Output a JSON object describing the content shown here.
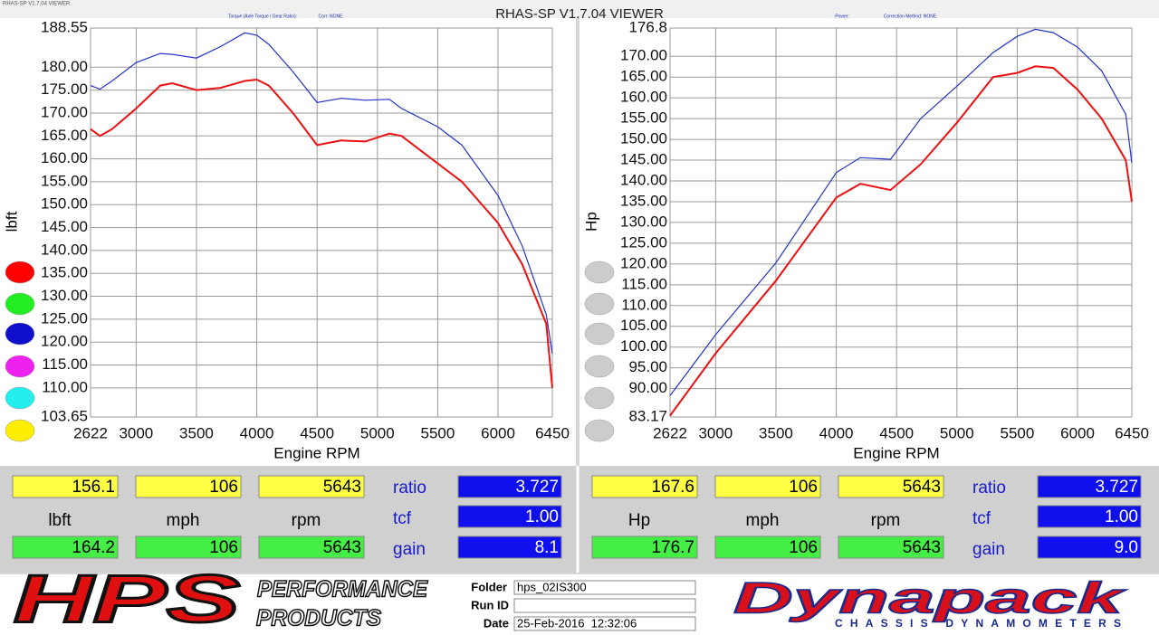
{
  "window_title": "RHAS-SP V1.7.04 VIEWER",
  "chart_data": [
    {
      "type": "line",
      "subtitle": "Torque (Axle Torque / Gear Ratio):",
      "correction": "Corr: NONE",
      "x_label": "Engine RPM",
      "y_label": "lbft",
      "x": [
        2622,
        2700,
        2800,
        3000,
        3200,
        3300,
        3500,
        3700,
        3900,
        4000,
        4100,
        4300,
        4500,
        4700,
        4900,
        5100,
        5200,
        5500,
        5700,
        6000,
        6200,
        6400,
        6450
      ],
      "series": [
        {
          "color": "#ee1111",
          "values": [
            166.5,
            165,
            166.5,
            171,
            176,
            176.5,
            175,
            175.5,
            177,
            177.3,
            176,
            170,
            163,
            164,
            163.8,
            165.5,
            165,
            159,
            155,
            146,
            137,
            124,
            110
          ]
        },
        {
          "color": "#2233cc",
          "values": [
            176,
            175.2,
            177,
            181,
            183,
            182.8,
            182,
            184.5,
            187.5,
            187,
            185,
            179,
            172.3,
            173.2,
            172.8,
            173,
            171,
            167,
            163,
            152,
            141,
            126,
            117.5
          ]
        }
      ],
      "xlim": [
        2622,
        6450
      ],
      "xticks": [
        2622,
        3000,
        3500,
        4000,
        4500,
        5000,
        5500,
        6000,
        6450
      ],
      "ylim": [
        103.65,
        188.55
      ],
      "yticks": [
        103.65,
        {
          "value": 110,
          "label": "110.00"
        },
        {
          "value": 115,
          "label": "115.00"
        },
        {
          "value": 120,
          "label": "120.00"
        },
        {
          "value": 125,
          "label": "125.00"
        },
        {
          "value": 130,
          "label": "130.00"
        },
        {
          "value": 135,
          "label": "135.00"
        },
        {
          "value": 140,
          "label": "140.00"
        },
        {
          "value": 145,
          "label": "145.00"
        },
        {
          "value": 150,
          "label": "150.00"
        },
        {
          "value": 155,
          "label": "155.00"
        },
        {
          "value": 160,
          "label": "160.00"
        },
        {
          "value": 165,
          "label": "165.00"
        },
        {
          "value": 170,
          "label": "170.00"
        },
        {
          "value": 175,
          "label": "175.00"
        },
        {
          "value": 180,
          "label": "180.00"
        },
        188.55
      ],
      "grid": true
    },
    {
      "type": "line",
      "subtitle": "Power:",
      "correction": "Correction Method: NONE",
      "x_label": "Engine RPM",
      "y_label": "Hp",
      "x": [
        2622,
        3000,
        3500,
        4000,
        4200,
        4450,
        4700,
        5000,
        5300,
        5500,
        5650,
        5800,
        6000,
        6200,
        6400,
        6450
      ],
      "series": [
        {
          "color": "#ee1111",
          "values": [
            83.5,
            98.5,
            116,
            136,
            139.3,
            137.8,
            144,
            154,
            165,
            166,
            167.6,
            167.2,
            162,
            155,
            145,
            135
          ]
        },
        {
          "color": "#2233cc",
          "values": [
            88.3,
            103,
            120.3,
            142,
            145.6,
            145.2,
            155,
            162.8,
            170.9,
            174.8,
            176.5,
            175.7,
            172.2,
            166.5,
            156,
            144.3
          ]
        }
      ],
      "xlim": [
        2622,
        6450
      ],
      "xticks": [
        2622,
        3000,
        3500,
        4000,
        4500,
        5000,
        5500,
        6000,
        6450
      ],
      "ylim": [
        83.17,
        176.8
      ],
      "yticks": [
        83.17,
        {
          "value": 90,
          "label": "90.00"
        },
        {
          "value": 95,
          "label": "95.00"
        },
        {
          "value": 100,
          "label": "100.00"
        },
        {
          "value": 105,
          "label": "105.00"
        },
        {
          "value": 110,
          "label": "110.00"
        },
        {
          "value": 115,
          "label": "115.00"
        },
        {
          "value": 120,
          "label": "120.00"
        },
        {
          "value": 125,
          "label": "125.00"
        },
        {
          "value": 130,
          "label": "130.00"
        },
        {
          "value": 135,
          "label": "135.00"
        },
        {
          "value": 140,
          "label": "140.00"
        },
        {
          "value": 145,
          "label": "145.00"
        },
        {
          "value": 150,
          "label": "150.00"
        },
        {
          "value": 155,
          "label": "155.00"
        },
        {
          "value": 160,
          "label": "160.00"
        },
        {
          "value": 165,
          "label": "165.00"
        },
        {
          "value": 170,
          "label": "170.00"
        },
        176.8
      ],
      "grid": true
    }
  ],
  "readouts": [
    {
      "top": [
        "156.1",
        "106",
        "5643"
      ],
      "units": [
        "lbft",
        "mph",
        "rpm"
      ],
      "bottom": [
        "164.2",
        "106",
        "5643"
      ],
      "ratio_label": "ratio",
      "ratio": "3.727",
      "tcf_label": "tcf",
      "tcf": "1.00",
      "gain_label": "gain",
      "gain": "8.1"
    },
    {
      "top": [
        "167.6",
        "106",
        "5643"
      ],
      "units": [
        "Hp",
        "mph",
        "rpm"
      ],
      "bottom": [
        "176.7",
        "106",
        "5643"
      ],
      "ratio_label": "ratio",
      "ratio": "3.727",
      "tcf_label": "tcf",
      "tcf": "1.00",
      "gain_label": "gain",
      "gain": "9.0"
    }
  ],
  "footer": {
    "hps": "HPS",
    "hps_line1": "PERFORMANCE",
    "hps_line2": "PRODUCTS",
    "folder_label": "Folder",
    "folder": "hps_02IS300",
    "run_label": "Run ID",
    "date_label": "Date",
    "date": "25-Feb-2016  12:32:06",
    "dynapack": "Dynapack",
    "dynapack_sub": "CHASSIS DYNAMOMETERS"
  }
}
